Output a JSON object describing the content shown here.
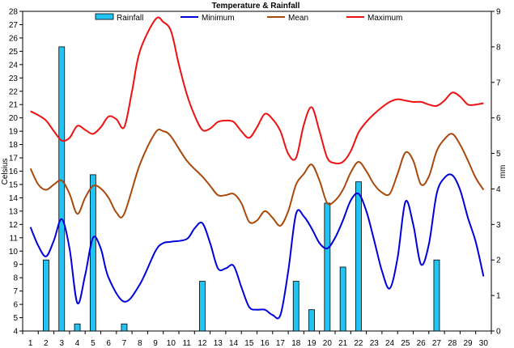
{
  "chart_data": {
    "type": "line",
    "title": "Temperature & Rainfall",
    "ylabel": "Celsius",
    "y2label": "mm",
    "ylim": [
      4,
      28
    ],
    "y2lim": [
      0,
      9
    ],
    "x_ticks": [
      1,
      2,
      3,
      4,
      5,
      6,
      7,
      8,
      9,
      10,
      11,
      12,
      13,
      14,
      15,
      16,
      17,
      18,
      19,
      20,
      21,
      22,
      23,
      24,
      25,
      26,
      27,
      28,
      29,
      30
    ],
    "legend_position": "top",
    "rainfall": {
      "name": "Rainfall",
      "color": "#21c4f2",
      "days": [
        2,
        3,
        4,
        5,
        7,
        12,
        18,
        19,
        20,
        21,
        22,
        27
      ],
      "values": [
        2.0,
        8.0,
        0.2,
        4.4,
        0.2,
        1.4,
        1.4,
        0.6,
        3.6,
        1.8,
        4.2,
        2.0
      ]
    },
    "series": [
      {
        "name": "Minimum",
        "color": "#0000dd",
        "x": [
          1,
          1.5,
          2,
          2.5,
          3,
          3.5,
          4,
          4.5,
          5,
          5.5,
          6,
          7,
          8,
          9,
          9.5,
          10,
          11,
          11.5,
          12,
          12.5,
          13,
          13.5,
          14,
          14.5,
          15,
          15.5,
          16,
          16.5,
          17,
          17.5,
          18,
          18.5,
          19,
          19.5,
          20,
          20.5,
          21,
          21.5,
          22,
          22.5,
          23,
          23.5,
          24,
          24.5,
          25,
          25.5,
          26,
          26.5,
          27,
          27.5,
          28,
          28.5,
          29,
          29.5,
          30
        ],
        "values": [
          11.8,
          10.4,
          9.6,
          10.8,
          12.4,
          10.2,
          6.1,
          8.2,
          11.0,
          10.2,
          8.0,
          6.2,
          7.5,
          10.0,
          10.6,
          10.7,
          10.9,
          11.7,
          12.1,
          10.6,
          8.7,
          8.7,
          8.9,
          7.3,
          5.8,
          5.6,
          5.6,
          5.2,
          5.2,
          8.5,
          12.8,
          12.6,
          11.7,
          10.6,
          10.2,
          11.0,
          12.3,
          13.8,
          14.3,
          13.0,
          10.8,
          8.5,
          7.2,
          9.5,
          13.7,
          12.0,
          9.0,
          10.5,
          14.3,
          15.5,
          15.7,
          14.6,
          12.5,
          10.7,
          8.1
        ]
      },
      {
        "name": "Mean",
        "color": "#a84a0c",
        "x": [
          1,
          1.5,
          2,
          2.5,
          3,
          3.5,
          4,
          4.5,
          5,
          5.5,
          6,
          6.5,
          7,
          8,
          9,
          9.5,
          10,
          11,
          12,
          12.5,
          13,
          13.5,
          14,
          14.5,
          15,
          15.5,
          16,
          16.5,
          17,
          17.5,
          18,
          18.5,
          19,
          19.5,
          20,
          20.5,
          21,
          21.5,
          22,
          22.5,
          23,
          23.5,
          24,
          24.5,
          25,
          25.5,
          26,
          26.5,
          27,
          27.5,
          28,
          28.5,
          29,
          29.5,
          30
        ],
        "values": [
          16.2,
          15.0,
          14.6,
          15.0,
          15.3,
          14.3,
          12.8,
          14.0,
          14.9,
          14.7,
          14.0,
          12.9,
          12.8,
          16.5,
          18.9,
          19.0,
          18.6,
          16.8,
          15.6,
          14.9,
          14.2,
          14.2,
          14.3,
          13.6,
          12.2,
          12.3,
          13.0,
          12.5,
          11.9,
          13.0,
          15.0,
          15.8,
          16.5,
          15.3,
          13.6,
          13.8,
          14.6,
          15.9,
          16.7,
          16.0,
          15.0,
          14.4,
          14.3,
          15.8,
          17.4,
          16.8,
          15.0,
          15.6,
          17.5,
          18.4,
          18.8,
          18.0,
          16.8,
          15.5,
          14.6
        ]
      },
      {
        "name": "Maximum",
        "color": "#ee1111",
        "x": [
          1,
          1.5,
          2,
          2.5,
          3,
          3.5,
          4,
          4.5,
          5,
          5.5,
          6,
          6.5,
          7,
          7.5,
          8,
          9,
          9.5,
          10,
          10.5,
          11,
          11.5,
          12,
          12.5,
          13,
          13.5,
          14,
          14.5,
          15,
          15.5,
          16,
          16.5,
          17,
          17.5,
          18,
          18.5,
          19,
          19.5,
          20,
          20.5,
          21,
          21.5,
          22,
          22.5,
          23,
          23.5,
          24,
          24.5,
          25,
          25.5,
          26,
          26.5,
          27,
          27.5,
          28,
          28.5,
          29,
          29.5,
          30
        ],
        "values": [
          20.5,
          20.2,
          19.8,
          19.0,
          18.3,
          18.5,
          19.4,
          19.1,
          18.8,
          19.3,
          20.1,
          19.9,
          19.3,
          22.0,
          25.0,
          27.4,
          27.2,
          26.5,
          24.0,
          21.8,
          20.2,
          19.1,
          19.2,
          19.7,
          19.8,
          19.7,
          19.0,
          18.5,
          19.3,
          20.3,
          19.9,
          19.0,
          17.3,
          17.0,
          19.5,
          20.8,
          19.0,
          17.0,
          16.6,
          16.7,
          17.5,
          18.9,
          19.7,
          20.3,
          20.8,
          21.2,
          21.4,
          21.3,
          21.2,
          21.2,
          21.0,
          20.9,
          21.3,
          21.9,
          21.6,
          21.0,
          21.0,
          21.1
        ]
      }
    ]
  }
}
